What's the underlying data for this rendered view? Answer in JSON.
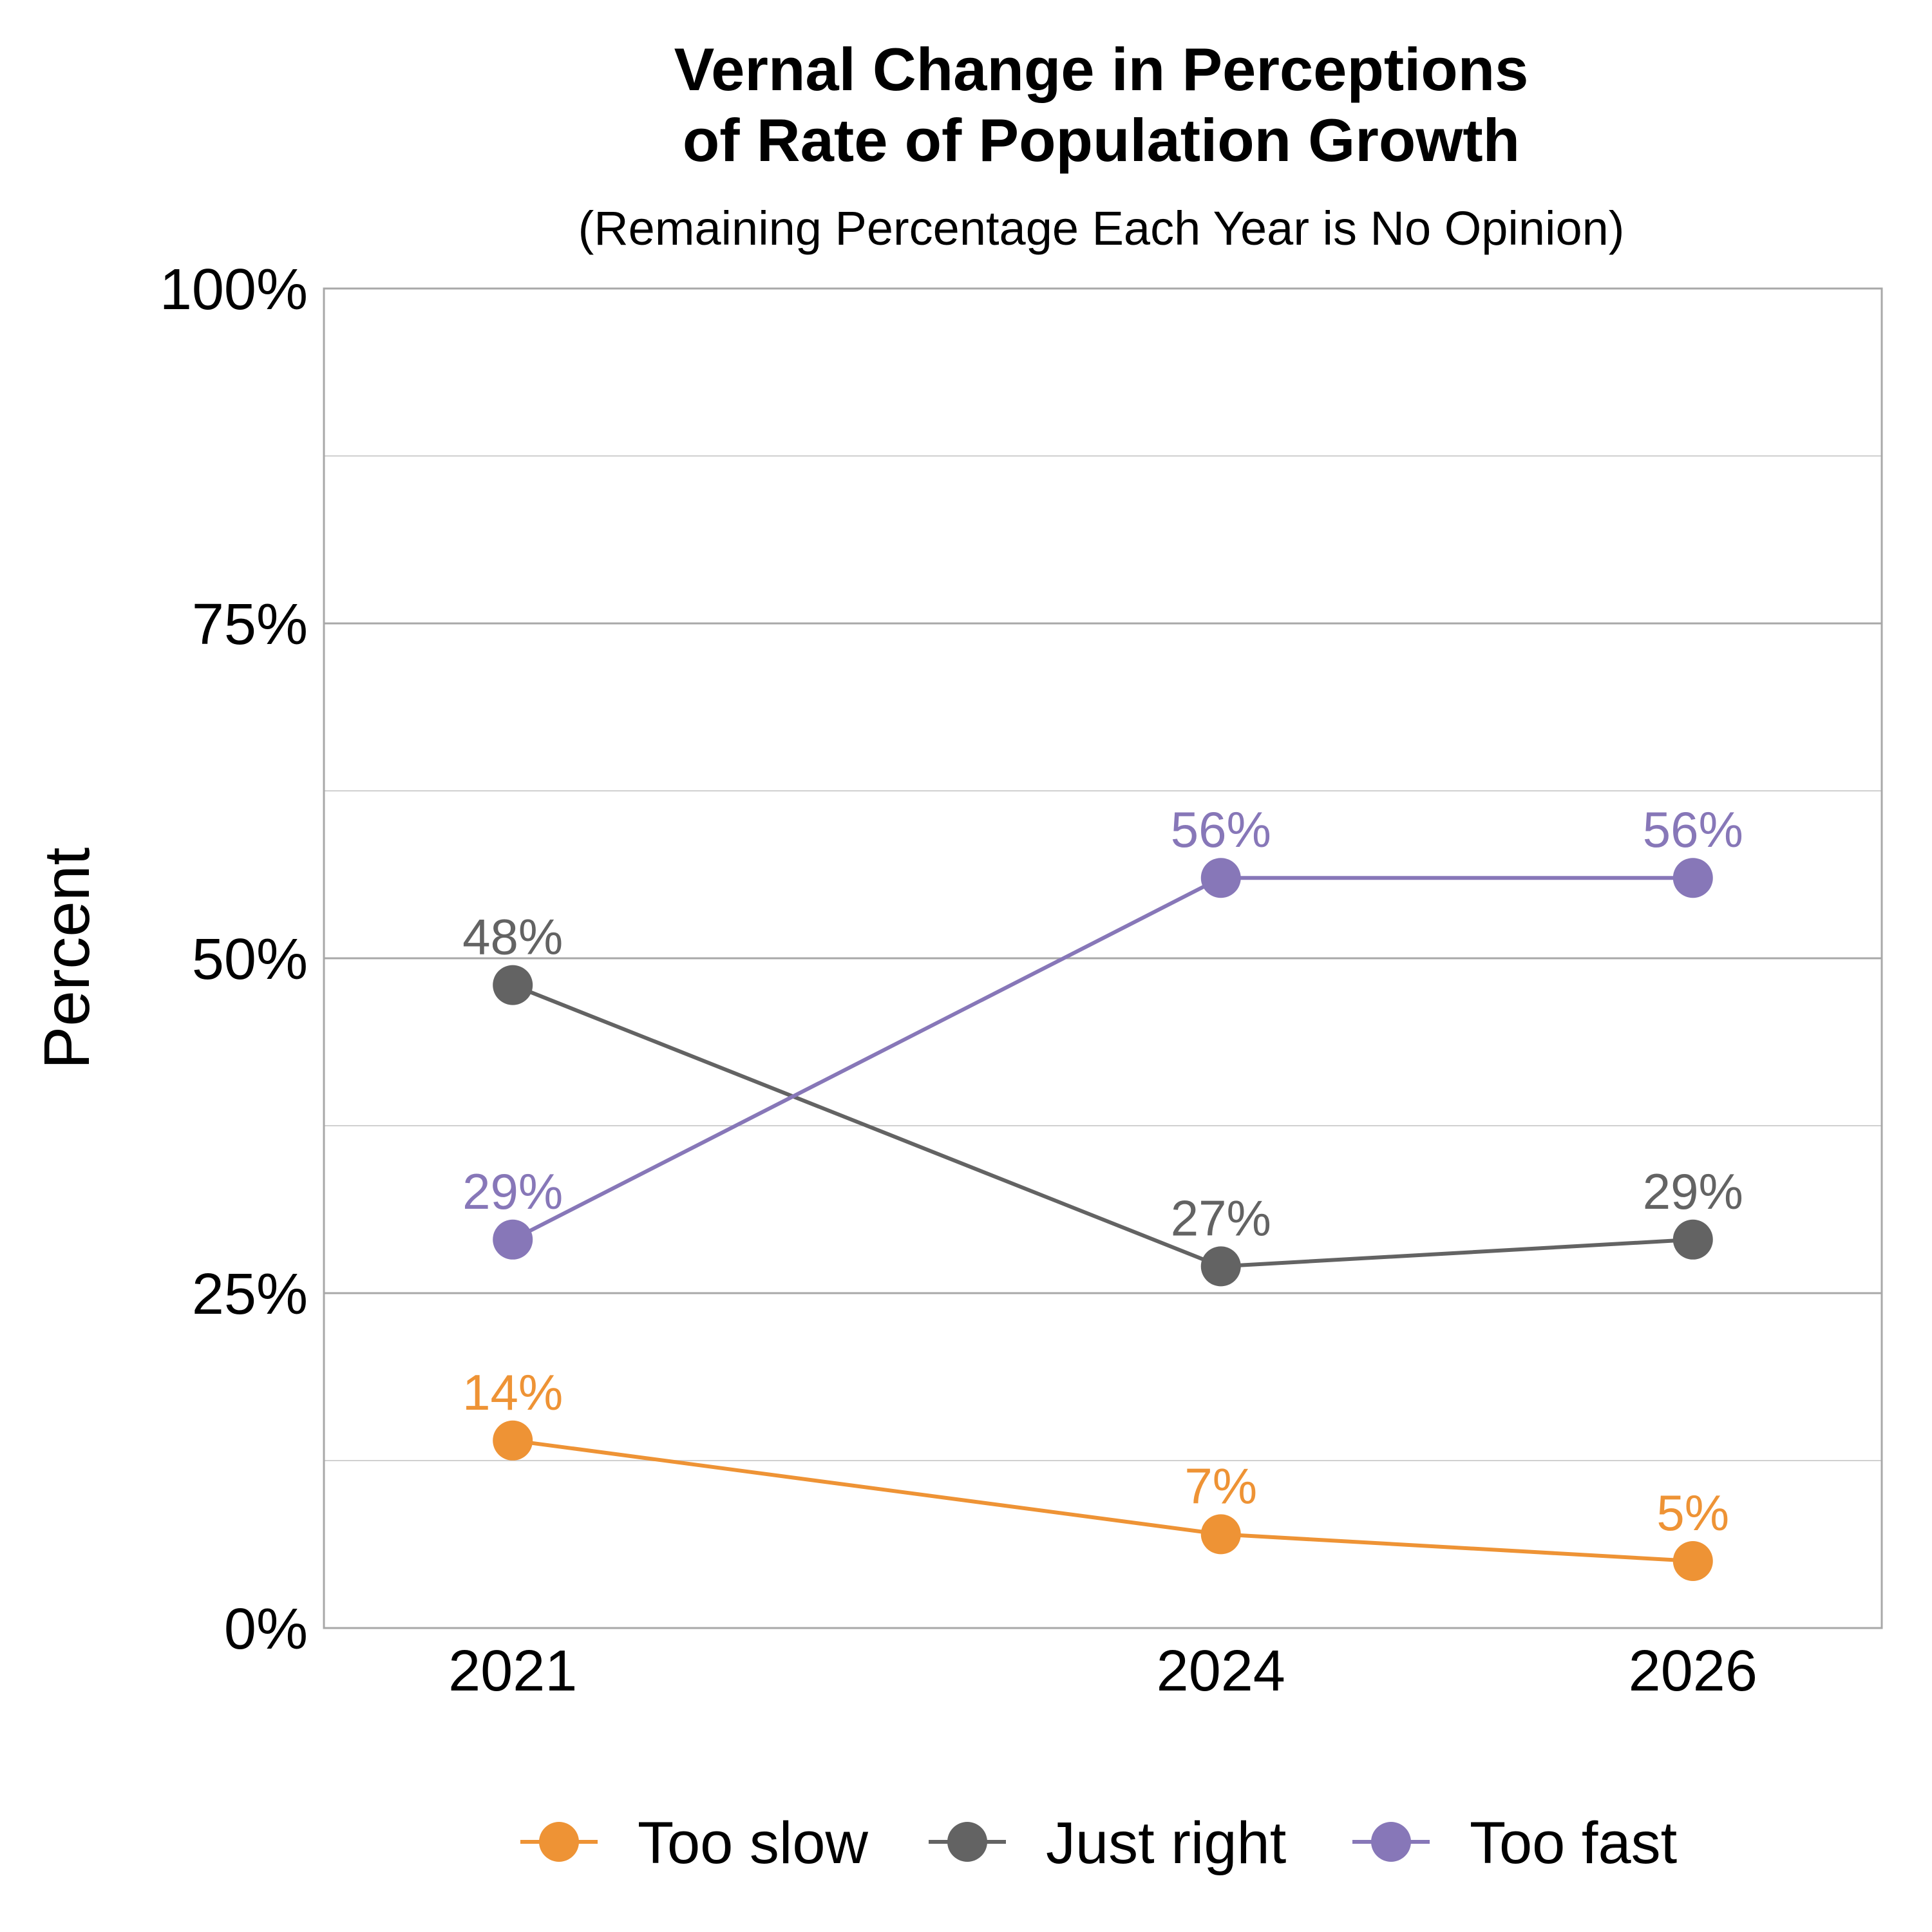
{
  "chart_data": {
    "type": "line",
    "title_lines": [
      "Vernal Change in Perceptions",
      "of Rate of Population Growth"
    ],
    "subtitle": "(Remaining Percentage Each Year is No Opinion)",
    "xlabel": "",
    "ylabel": "Percent",
    "x": [
      2021,
      2024,
      2026
    ],
    "xlim": [
      2020.2,
      2026.8
    ],
    "ylim": [
      0,
      100
    ],
    "yticks": [
      0,
      25,
      50,
      75,
      100
    ],
    "ytick_labels": [
      "0%",
      "25%",
      "50%",
      "75%",
      "100%"
    ],
    "minor_gridlines": [
      12.5,
      37.5,
      62.5,
      87.5
    ],
    "grid": true,
    "legend_position": "bottom",
    "series": [
      {
        "name": "Too slow",
        "color": "#EE9335",
        "values": [
          14,
          7,
          5
        ],
        "labels": [
          "14%",
          "7%",
          "5%"
        ]
      },
      {
        "name": "Just right",
        "color": "#636363",
        "values": [
          48,
          27,
          29
        ],
        "labels": [
          "48%",
          "27%",
          "29%"
        ]
      },
      {
        "name": "Too fast",
        "color": "#8777B8",
        "values": [
          29,
          56,
          56
        ],
        "labels": [
          "29%",
          "56%",
          "56%"
        ]
      }
    ]
  }
}
